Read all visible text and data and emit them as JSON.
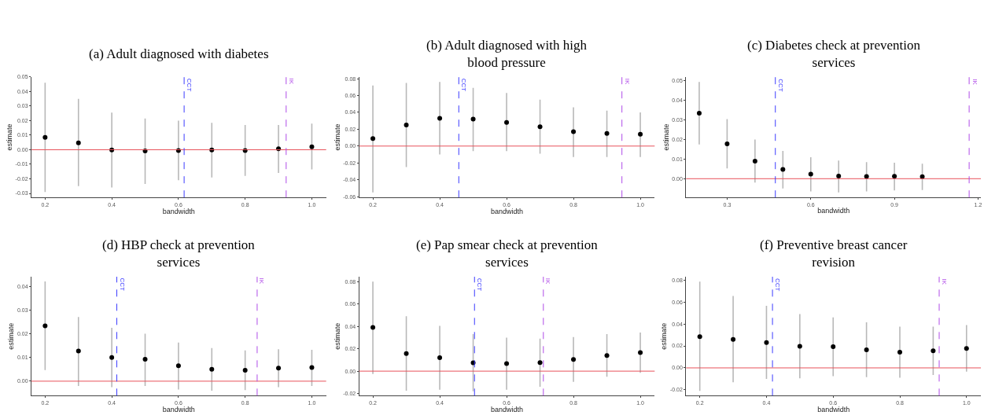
{
  "chart_data": [
    {
      "type": "scatter",
      "title": "(a) Adult diagnosed with diabetes",
      "xlabel": "bandwidth",
      "ylabel": "estimate",
      "marker": "circle",
      "x": [
        0.2,
        0.3,
        0.4,
        0.5,
        0.6,
        0.7,
        0.8,
        0.9,
        1.0
      ],
      "series": [
        {
          "color": "#000000",
          "values": [
            0.0085,
            0.0047,
            -0.0002,
            -0.0008,
            -0.0005,
            -0.0002,
            -0.0005,
            0.0006,
            0.002
          ],
          "errors": [
            [
              -0.029,
              0.046
            ],
            [
              -0.025,
              0.035
            ],
            [
              -0.026,
              0.0255
            ],
            [
              -0.0235,
              0.0215
            ],
            [
              -0.021,
              0.02
            ],
            [
              -0.019,
              0.0185
            ],
            [
              -0.018,
              0.017
            ],
            [
              -0.016,
              0.017
            ],
            [
              -0.0135,
              0.018
            ]
          ]
        }
      ],
      "xlim": [
        0.159,
        1.043
      ],
      "ylim": [
        -0.0328,
        0.05
      ],
      "xticks": [
        {
          "value": 0.2,
          "label": "0.2"
        },
        {
          "value": 0.4,
          "label": "0.4"
        },
        {
          "value": 0.6,
          "label": "0.6"
        },
        {
          "value": 0.8,
          "label": "0.8"
        },
        {
          "value": 1.0,
          "label": "1.0"
        }
      ],
      "yticks": [
        {
          "value": -0.03,
          "label": "-0.03"
        },
        {
          "value": -0.02,
          "label": "-0.02"
        },
        {
          "value": -0.01,
          "label": "-0.01"
        },
        {
          "value": 0,
          "label": "0.00"
        },
        {
          "value": 0.01,
          "label": "0.01"
        },
        {
          "value": 0.02,
          "label": "0.02"
        },
        {
          "value": 0.03,
          "label": "0.03"
        },
        {
          "value": 0.04,
          "label": "0.04"
        },
        {
          "value": 0.05,
          "label": "0.05"
        }
      ],
      "ref_lines": [
        {
          "axis": "y",
          "value": 0,
          "color": "#e8525a",
          "line_style": "solid"
        },
        {
          "axis": "x",
          "value": 0.617,
          "label": "CCT",
          "color": "#3b3bff",
          "line_style": "dashed"
        },
        {
          "axis": "x",
          "value": 0.923,
          "label": "IK",
          "color": "#b04ce8",
          "line_style": "dashed"
        }
      ]
    },
    {
      "type": "scatter",
      "title": "(b) Adult diagnosed with high\nblood pressure",
      "xlabel": "bandwidth",
      "ylabel": "estimate",
      "marker": "circle",
      "x": [
        0.2,
        0.3,
        0.4,
        0.5,
        0.6,
        0.7,
        0.8,
        0.9,
        1.0
      ],
      "series": [
        {
          "color": "#000000",
          "values": [
            0.009,
            0.025,
            0.033,
            0.032,
            0.028,
            0.023,
            0.017,
            0.015,
            0.014
          ],
          "errors": [
            [
              -0.055,
              0.072
            ],
            [
              -0.025,
              0.075
            ],
            [
              -0.01,
              0.076
            ],
            [
              -0.006,
              0.069
            ],
            [
              -0.006,
              0.063
            ],
            [
              -0.009,
              0.055
            ],
            [
              -0.013,
              0.046
            ],
            [
              -0.013,
              0.042
            ],
            [
              -0.013,
              0.04
            ]
          ]
        }
      ],
      "xlim": [
        0.159,
        1.043
      ],
      "ylim": [
        -0.061,
        0.082
      ],
      "xticks": [
        {
          "value": 0.2,
          "label": "0.2"
        },
        {
          "value": 0.4,
          "label": "0.4"
        },
        {
          "value": 0.6,
          "label": "0.6"
        },
        {
          "value": 0.8,
          "label": "0.8"
        },
        {
          "value": 1.0,
          "label": "1.0"
        }
      ],
      "yticks": [
        {
          "value": -0.06,
          "label": "-0.06"
        },
        {
          "value": -0.04,
          "label": "-0.04"
        },
        {
          "value": -0.02,
          "label": "-0.02"
        },
        {
          "value": 0,
          "label": "0.00"
        },
        {
          "value": 0.02,
          "label": "0.02"
        },
        {
          "value": 0.04,
          "label": "0.04"
        },
        {
          "value": 0.06,
          "label": "0.06"
        },
        {
          "value": 0.08,
          "label": "0.08"
        }
      ],
      "ref_lines": [
        {
          "axis": "y",
          "value": 0,
          "color": "#e8525a",
          "line_style": "solid"
        },
        {
          "axis": "x",
          "value": 0.457,
          "label": "CCT",
          "color": "#3b3bff",
          "line_style": "dashed"
        },
        {
          "axis": "x",
          "value": 0.945,
          "label": "IK",
          "color": "#b04ce8",
          "line_style": "dashed"
        }
      ]
    },
    {
      "type": "scatter",
      "title": "(c) Diabetes check at prevention\nservices",
      "xlabel": "bandwidth",
      "ylabel": "estimate",
      "marker": "circle",
      "x": [
        0.2,
        0.3,
        0.4,
        0.5,
        0.6,
        0.7,
        0.8,
        0.9,
        1.0
      ],
      "series": [
        {
          "color": "#000000",
          "values": [
            0.0335,
            0.0178,
            0.009,
            0.0047,
            0.0023,
            0.0013,
            0.0011,
            0.0012,
            0.001
          ],
          "errors": [
            [
              0.0175,
              0.0495
            ],
            [
              0.0052,
              0.0305
            ],
            [
              -0.002,
              0.02
            ],
            [
              -0.005,
              0.0142
            ],
            [
              -0.0065,
              0.011
            ],
            [
              -0.007,
              0.0093
            ],
            [
              -0.0065,
              0.0085
            ],
            [
              -0.006,
              0.0082
            ],
            [
              -0.0058,
              0.0077
            ]
          ]
        }
      ],
      "xlim": [
        0.153,
        1.21
      ],
      "ylim": [
        -0.0096,
        0.052
      ],
      "xticks": [
        {
          "value": 0.3,
          "label": "0.3"
        },
        {
          "value": 0.6,
          "label": "0.6"
        },
        {
          "value": 0.9,
          "label": "0.9"
        },
        {
          "value": 1.2,
          "label": "1.2"
        }
      ],
      "yticks": [
        {
          "value": 0,
          "label": "0.00"
        },
        {
          "value": 0.01,
          "label": "0.01"
        },
        {
          "value": 0.02,
          "label": "0.02"
        },
        {
          "value": 0.03,
          "label": "0.03"
        },
        {
          "value": 0.04,
          "label": "0.04"
        },
        {
          "value": 0.05,
          "label": "0.05"
        }
      ],
      "ref_lines": [
        {
          "axis": "y",
          "value": 0,
          "color": "#e8525a",
          "line_style": "solid"
        },
        {
          "axis": "x",
          "value": 0.473,
          "label": "CCT",
          "color": "#3b3bff",
          "line_style": "dashed"
        },
        {
          "axis": "x",
          "value": 1.168,
          "label": "IK",
          "color": "#b04ce8",
          "line_style": "dashed"
        }
      ]
    },
    {
      "type": "scatter",
      "title": "(d) HBP check at prevention\nservices",
      "xlabel": "bandwidth",
      "ylabel": "estimate",
      "marker": "circle",
      "x": [
        0.2,
        0.3,
        0.4,
        0.5,
        0.6,
        0.7,
        0.8,
        0.9,
        1.0
      ],
      "series": [
        {
          "color": "#000000",
          "values": [
            0.0233,
            0.0127,
            0.01,
            0.0092,
            0.0065,
            0.005,
            0.0046,
            0.0055,
            0.0058
          ],
          "errors": [
            [
              0.0047,
              0.042
            ],
            [
              -0.002,
              0.027
            ],
            [
              -0.0025,
              0.0225
            ],
            [
              -0.002,
              0.02
            ],
            [
              -0.0035,
              0.0163
            ],
            [
              -0.004,
              0.014
            ],
            [
              -0.0038,
              0.013
            ],
            [
              -0.0025,
              0.0135
            ],
            [
              -0.002,
              0.0132
            ]
          ]
        }
      ],
      "xlim": [
        0.159,
        1.043
      ],
      "ylim": [
        -0.0061,
        0.044
      ],
      "xticks": [
        {
          "value": 0.2,
          "label": "0.2"
        },
        {
          "value": 0.4,
          "label": "0.4"
        },
        {
          "value": 0.6,
          "label": "0.6"
        },
        {
          "value": 0.8,
          "label": "0.8"
        },
        {
          "value": 1.0,
          "label": "1.0"
        }
      ],
      "yticks": [
        {
          "value": 0,
          "label": "0.00"
        },
        {
          "value": 0.01,
          "label": "0.01"
        },
        {
          "value": 0.02,
          "label": "0.02"
        },
        {
          "value": 0.03,
          "label": "0.03"
        },
        {
          "value": 0.04,
          "label": "0.04"
        }
      ],
      "ref_lines": [
        {
          "axis": "y",
          "value": 0,
          "color": "#e8525a",
          "line_style": "solid"
        },
        {
          "axis": "x",
          "value": 0.415,
          "label": "CCT",
          "color": "#3b3bff",
          "line_style": "dashed"
        },
        {
          "axis": "x",
          "value": 0.836,
          "label": "IK",
          "color": "#b04ce8",
          "line_style": "dashed"
        }
      ]
    },
    {
      "type": "scatter",
      "title": "(e) Pap smear check at prevention\nservices",
      "xlabel": "bandwidth",
      "ylabel": "estimate",
      "marker": "circle",
      "x": [
        0.2,
        0.3,
        0.4,
        0.5,
        0.6,
        0.7,
        0.8,
        0.9,
        1.0
      ],
      "series": [
        {
          "color": "#000000",
          "values": [
            0.039,
            0.0157,
            0.012,
            0.0075,
            0.0068,
            0.0077,
            0.0105,
            0.014,
            0.0165
          ],
          "errors": [
            [
              -0.0025,
              0.08
            ],
            [
              -0.0175,
              0.049
            ],
            [
              -0.0165,
              0.0405
            ],
            [
              -0.018,
              0.033
            ],
            [
              -0.0165,
              0.03
            ],
            [
              -0.014,
              0.029
            ],
            [
              -0.0095,
              0.0305
            ],
            [
              -0.005,
              0.033
            ],
            [
              -0.0015,
              0.0345
            ]
          ]
        }
      ],
      "xlim": [
        0.159,
        1.043
      ],
      "ylim": [
        -0.0219,
        0.0843
      ],
      "xticks": [
        {
          "value": 0.2,
          "label": "0.2"
        },
        {
          "value": 0.4,
          "label": "0.4"
        },
        {
          "value": 0.6,
          "label": "0.6"
        },
        {
          "value": 0.8,
          "label": "0.8"
        },
        {
          "value": 1.0,
          "label": "1.0"
        }
      ],
      "yticks": [
        {
          "value": -0.02,
          "label": "-0.02"
        },
        {
          "value": 0,
          "label": "0.00"
        },
        {
          "value": 0.02,
          "label": "0.02"
        },
        {
          "value": 0.04,
          "label": "0.04"
        },
        {
          "value": 0.06,
          "label": "0.06"
        },
        {
          "value": 0.08,
          "label": "0.08"
        }
      ],
      "ref_lines": [
        {
          "axis": "y",
          "value": 0,
          "color": "#e8525a",
          "line_style": "solid"
        },
        {
          "axis": "x",
          "value": 0.504,
          "label": "CCT",
          "color": "#3b3bff",
          "line_style": "dashed"
        },
        {
          "axis": "x",
          "value": 0.71,
          "label": "IK",
          "color": "#b04ce8",
          "line_style": "dashed"
        }
      ]
    },
    {
      "type": "scatter",
      "title": "(f) Preventive breast cancer\nrevision",
      "xlabel": "bandwidth",
      "ylabel": "estimate",
      "marker": "circle",
      "x": [
        0.2,
        0.3,
        0.4,
        0.5,
        0.6,
        0.7,
        0.8,
        0.9,
        1.0
      ],
      "series": [
        {
          "color": "#000000",
          "values": [
            0.0285,
            0.026,
            0.023,
            0.0197,
            0.0193,
            0.0165,
            0.0143,
            0.0155,
            0.0177
          ],
          "errors": [
            [
              -0.021,
              0.0785
            ],
            [
              -0.013,
              0.0655
            ],
            [
              -0.01,
              0.0565
            ],
            [
              -0.0095,
              0.049
            ],
            [
              -0.0075,
              0.046
            ],
            [
              -0.0085,
              0.0415
            ],
            [
              -0.009,
              0.0375
            ],
            [
              -0.0065,
              0.0375
            ],
            [
              -0.0035,
              0.039
            ]
          ]
        }
      ],
      "xlim": [
        0.159,
        1.043
      ],
      "ylim": [
        -0.0253,
        0.083
      ],
      "xticks": [
        {
          "value": 0.2,
          "label": "0.2"
        },
        {
          "value": 0.4,
          "label": "0.4"
        },
        {
          "value": 0.6,
          "label": "0.6"
        },
        {
          "value": 0.8,
          "label": "0.8"
        },
        {
          "value": 1.0,
          "label": "1.0"
        }
      ],
      "yticks": [
        {
          "value": -0.02,
          "label": "-0.02"
        },
        {
          "value": 0,
          "label": "0.00"
        },
        {
          "value": 0.02,
          "label": "0.02"
        },
        {
          "value": 0.04,
          "label": "0.04"
        },
        {
          "value": 0.06,
          "label": "0.06"
        },
        {
          "value": 0.08,
          "label": "0.08"
        }
      ],
      "ref_lines": [
        {
          "axis": "y",
          "value": 0,
          "color": "#e8525a",
          "line_style": "solid"
        },
        {
          "axis": "x",
          "value": 0.418,
          "label": "CCT",
          "color": "#3b3bff",
          "line_style": "dashed"
        },
        {
          "axis": "x",
          "value": 0.918,
          "label": "IK",
          "color": "#b04ce8",
          "line_style": "dashed"
        }
      ]
    }
  ]
}
